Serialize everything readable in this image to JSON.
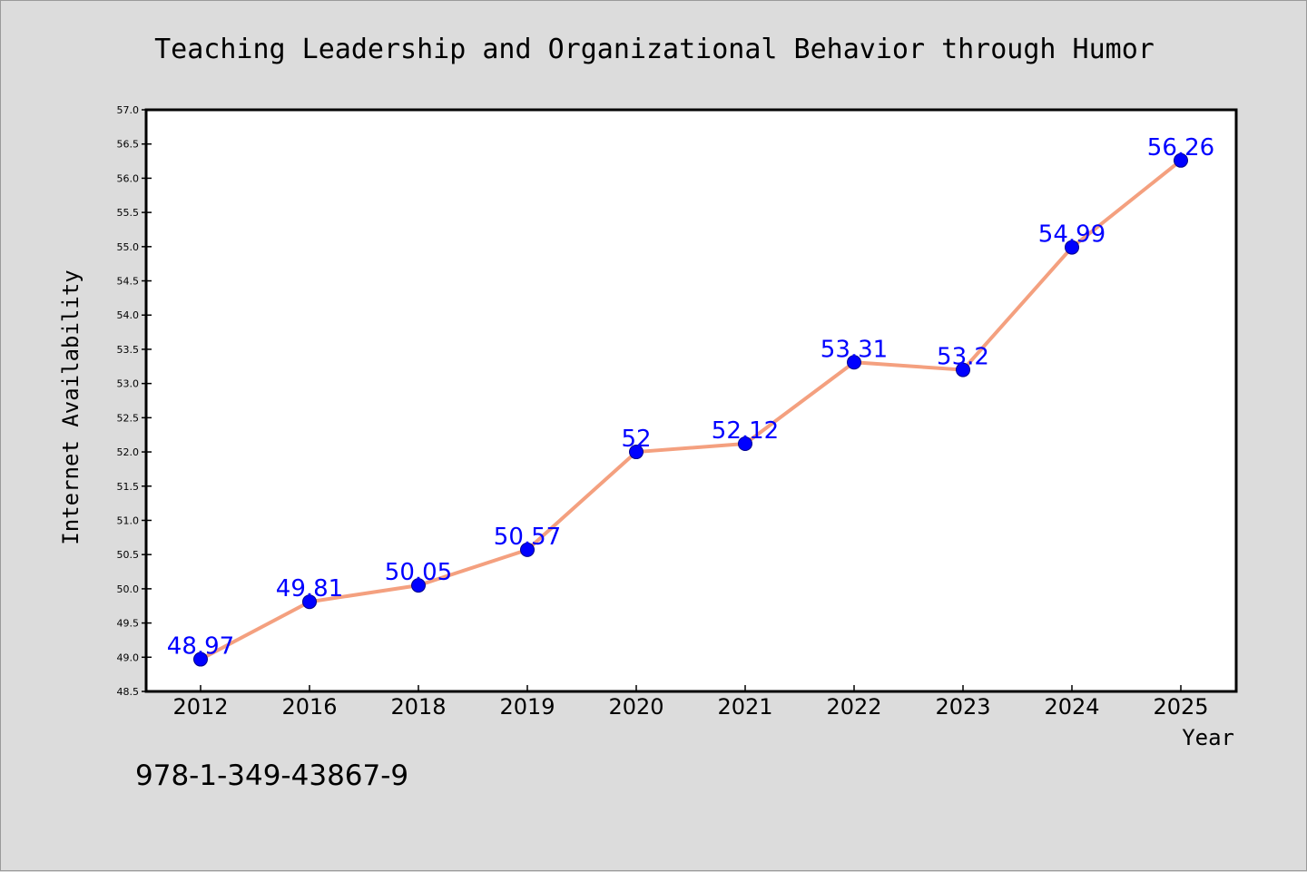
{
  "isbn": "978-1-349-43867-9",
  "colors": {
    "background": "#dcdcdc",
    "plot_background": "#ffffff",
    "line": "#f4a07f",
    "marker": "#0000ff",
    "marker_edge": "#00008b",
    "label": "#0000ff"
  },
  "chart_data": {
    "type": "line",
    "title": "Teaching Leadership and Organizational Behavior through Humor",
    "xlabel": "Year",
    "ylabel": "Internet Availability",
    "categories": [
      "2012",
      "2016",
      "2018",
      "2019",
      "2020",
      "2021",
      "2022",
      "2023",
      "2024",
      "2025"
    ],
    "series": [
      {
        "values": [
          48.97,
          49.81,
          50.05,
          50.57,
          52,
          52.12,
          53.31,
          53.2,
          54.99,
          56.26
        ]
      }
    ],
    "data_labels": [
      "48.97",
      "49.81",
      "50.05",
      "50.57",
      "52",
      "52.12",
      "53.31",
      "53.2",
      "54.99",
      "56.26"
    ],
    "ylim": [
      48.5,
      57.0
    ],
    "yticks": [
      "48.5",
      "49.0",
      "49.5",
      "50.0",
      "50.5",
      "51.0",
      "51.5",
      "52.0",
      "52.5",
      "53.0",
      "53.5",
      "54.0",
      "54.5",
      "55.0",
      "55.5",
      "56.0",
      "56.5",
      "57.0"
    ],
    "grid": false,
    "legend": "none"
  }
}
